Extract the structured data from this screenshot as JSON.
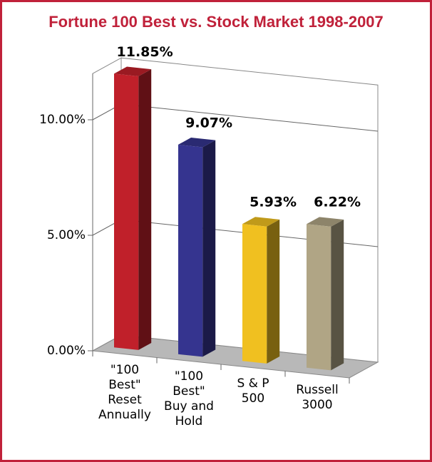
{
  "chart_data": {
    "type": "bar3d",
    "title": "Fortune 100 Best vs. Stock Market 1998-2007",
    "categories": [
      "\"100\nBest\"\nReset\nAnnually",
      "\"100\nBest\"\nBuy and\nHold",
      "S & P\n500",
      "Russell\n3000"
    ],
    "values": [
      11.85,
      9.07,
      5.93,
      6.22
    ],
    "value_labels": [
      "11.85%",
      "9.07%",
      "5.93%",
      "6.22%"
    ],
    "colors": [
      "#c0202a",
      "#35348f",
      "#f0c020",
      "#b0a585"
    ],
    "ylim": [
      0,
      12
    ],
    "yticks": [
      {
        "value": 0,
        "label": "0.00%"
      },
      {
        "value": 5,
        "label": "5.00%"
      },
      {
        "value": 10,
        "label": "10.00%"
      }
    ],
    "grid": true
  }
}
